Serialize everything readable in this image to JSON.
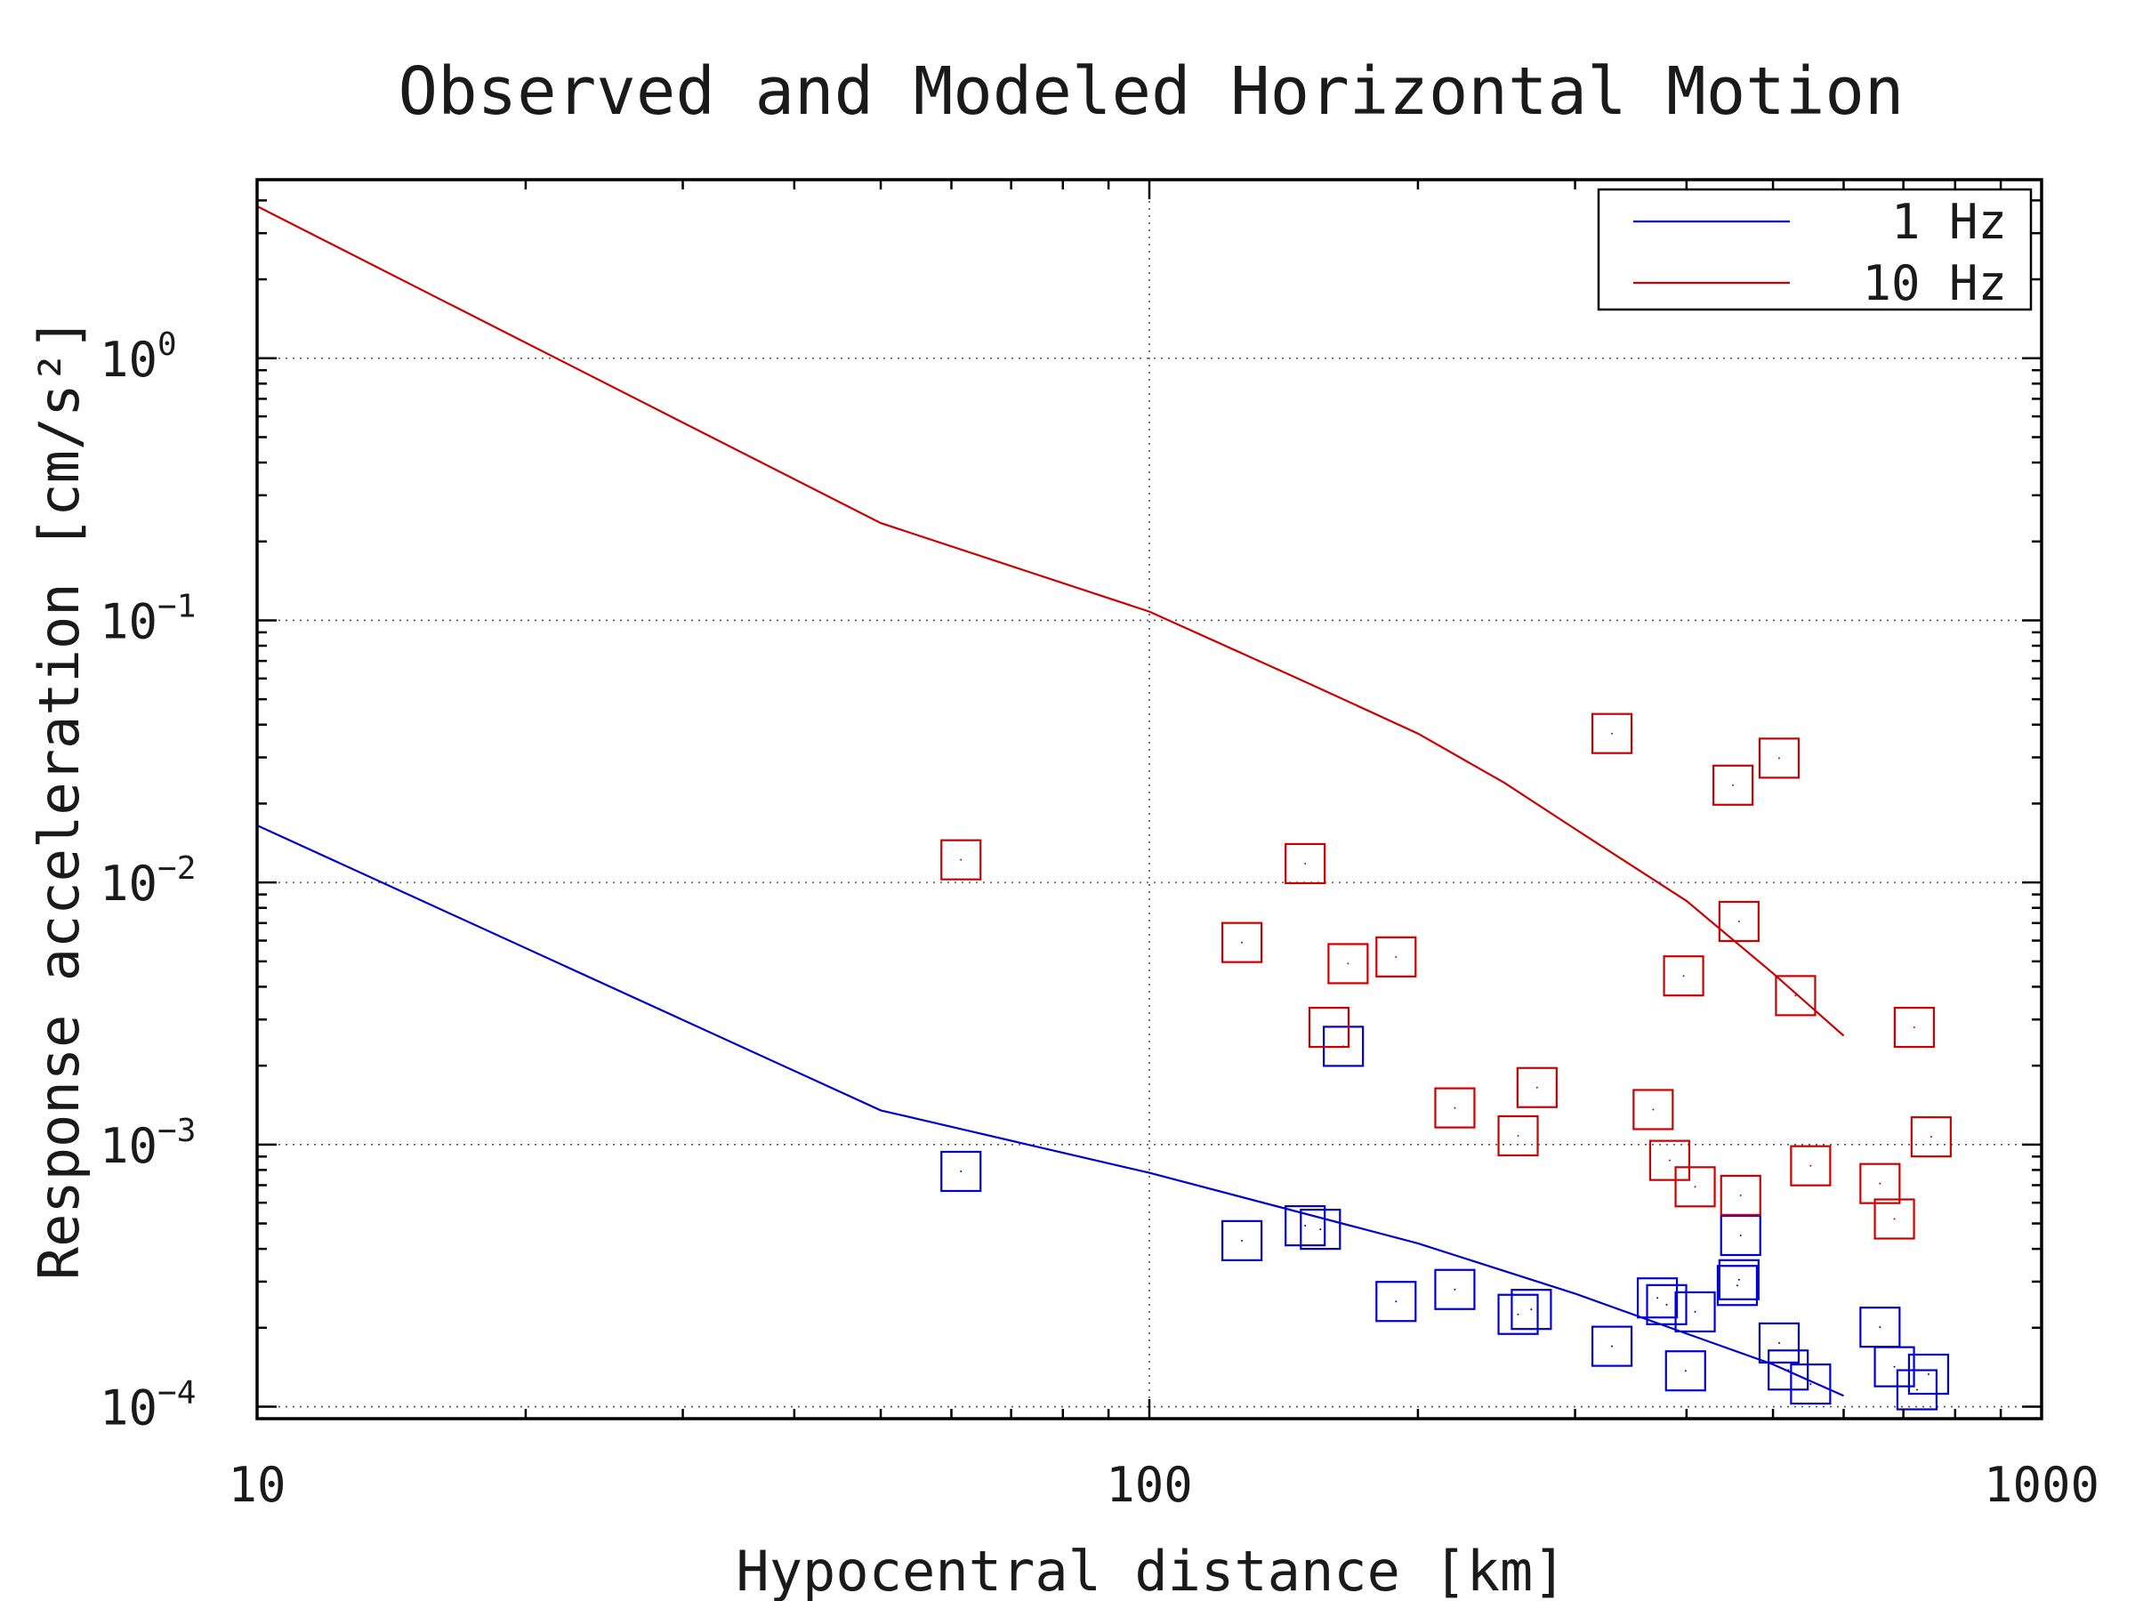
{
  "chart_data": {
    "type": "scatter",
    "title": "Observed and Modeled Horizontal Motion",
    "xlabel": "Hypocentral distance [km]",
    "ylabel": "Response acceleration [cm/s²]",
    "x_scale": "log",
    "y_scale": "log",
    "xlim": [
      10,
      1000
    ],
    "ylim": [
      9e-05,
      4.8
    ],
    "x_ticks": [
      {
        "value": 10,
        "label": "10"
      },
      {
        "value": 100,
        "label": "100"
      },
      {
        "value": 1000,
        "label": "1000"
      }
    ],
    "y_ticks": [
      {
        "value": 0.0001,
        "base": "10",
        "exp": "−4"
      },
      {
        "value": 0.001,
        "base": "10",
        "exp": "−3"
      },
      {
        "value": 0.01,
        "base": "10",
        "exp": "−2"
      },
      {
        "value": 0.1,
        "base": "10",
        "exp": "−1"
      },
      {
        "value": 1,
        "base": "10",
        "exp": "0"
      }
    ],
    "grid": "dotted, major ticks",
    "legend_position": "top-right",
    "legend": [
      {
        "label": "1 Hz",
        "color": "#0000cc"
      },
      {
        "label": "10 Hz",
        "color": "#cc0000"
      }
    ],
    "lines": [
      {
        "name": "1 Hz",
        "color": "#0000cc",
        "points": [
          [
            10,
            0.0165
          ],
          [
            50,
            0.00135
          ],
          [
            100,
            0.00078
          ],
          [
            200,
            0.00042
          ],
          [
            300,
            0.00027
          ],
          [
            400,
            0.00019
          ],
          [
            500,
            0.000145
          ],
          [
            600,
            0.00011
          ]
        ]
      },
      {
        "name": "10 Hz",
        "color": "#cc0000",
        "points": [
          [
            10,
            3.8
          ],
          [
            50,
            0.235
          ],
          [
            100,
            0.108
          ],
          [
            150,
            0.058
          ],
          [
            200,
            0.037
          ],
          [
            250,
            0.024
          ],
          [
            300,
            0.016
          ],
          [
            400,
            0.0085
          ],
          [
            500,
            0.0045
          ],
          [
            600,
            0.0026
          ]
        ]
      }
    ],
    "series": [
      {
        "color": "#0000cc",
        "marker": "square",
        "points": [
          [
            61.5,
            0.00079
          ],
          [
            127,
            0.00043
          ],
          [
            149.5,
            0.00049
          ],
          [
            155.5,
            0.000475
          ],
          [
            165,
            0.00237
          ],
          [
            189,
            0.000252
          ],
          [
            220,
            0.00028
          ],
          [
            259,
            0.000225
          ],
          [
            268,
            0.000235
          ],
          [
            330,
            0.00017
          ],
          [
            371,
            0.00026
          ],
          [
            380,
            0.000245
          ],
          [
            399,
            0.000137
          ],
          [
            409,
            0.00023
          ],
          [
            456,
            0.00029
          ],
          [
            458,
            0.000305
          ],
          [
            460,
            0.00045
          ],
          [
            508,
            0.000175
          ],
          [
            520,
            0.000138
          ],
          [
            551,
            0.000122
          ],
          [
            659,
            0.000201
          ],
          [
            684,
            0.000142
          ],
          [
            725,
            0.000116
          ],
          [
            747,
            0.000133
          ]
        ]
      },
      {
        "color": "#cc0000",
        "marker": "square",
        "points": [
          [
            61.5,
            0.0122
          ],
          [
            127,
            0.0059
          ],
          [
            149.5,
            0.0118
          ],
          [
            159,
            0.0028
          ],
          [
            167,
            0.0049
          ],
          [
            189,
            0.0052
          ],
          [
            220,
            0.00138
          ],
          [
            259,
            0.00108
          ],
          [
            272,
            0.00165
          ],
          [
            330,
            0.037
          ],
          [
            367,
            0.00136
          ],
          [
            383,
            0.00087
          ],
          [
            397,
            0.0044
          ],
          [
            409,
            0.00069
          ],
          [
            451,
            0.0235
          ],
          [
            458,
            0.0071
          ],
          [
            460,
            0.00064
          ],
          [
            508,
            0.0298
          ],
          [
            530,
            0.0037
          ],
          [
            551,
            0.00083
          ],
          [
            659,
            0.00071
          ],
          [
            684,
            0.00052
          ],
          [
            720,
            0.0028
          ],
          [
            752,
            0.00107
          ]
        ]
      }
    ]
  }
}
